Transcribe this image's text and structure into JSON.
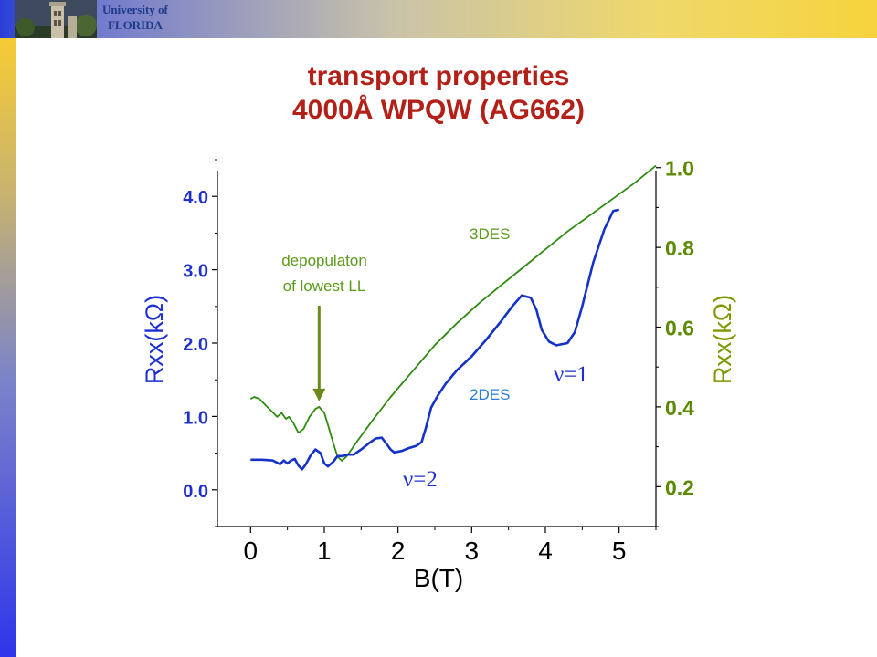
{
  "header": {
    "university_line1": "University of",
    "university_line2": "FLORIDA"
  },
  "slide": {
    "title_line1": "transport properties",
    "title_line2": "4000Å WPQW (AG662)"
  },
  "colors": {
    "title": "#b22018",
    "left_axis": "#1c2fd1",
    "right_axis": "#5c8a00",
    "series_2des": "#1432c8",
    "series_3des": "#2f8a10",
    "label_2des": "#2a7fd0",
    "label_3des": "#5c9a1a"
  },
  "chart_data": {
    "type": "line",
    "xlabel": "B(T)",
    "ylabel_left": "Rxx(kΩ)",
    "ylabel_right": "Rxx(kΩ)",
    "xlim": [
      -0.45,
      5.5
    ],
    "ylim_left": [
      -0.5,
      4.5
    ],
    "ylim_right": [
      0.1,
      1.02
    ],
    "x_ticks": [
      "0",
      "1",
      "2",
      "3",
      "4",
      "5"
    ],
    "y_left_ticks": [
      "0.0",
      "1.0",
      "2.0",
      "3.0",
      "4.0"
    ],
    "y_right_ticks": [
      "0.2",
      "0.4",
      "0.6",
      "0.8",
      "1.0"
    ],
    "series": [
      {
        "name": "2DES",
        "axis": "left",
        "points": [
          [
            0,
            0.41
          ],
          [
            0.15,
            0.41
          ],
          [
            0.3,
            0.4
          ],
          [
            0.4,
            0.35
          ],
          [
            0.45,
            0.4
          ],
          [
            0.5,
            0.36
          ],
          [
            0.55,
            0.4
          ],
          [
            0.6,
            0.42
          ],
          [
            0.65,
            0.33
          ],
          [
            0.7,
            0.28
          ],
          [
            0.75,
            0.35
          ],
          [
            0.82,
            0.48
          ],
          [
            0.88,
            0.55
          ],
          [
            0.95,
            0.5
          ],
          [
            1.0,
            0.36
          ],
          [
            1.05,
            0.32
          ],
          [
            1.12,
            0.38
          ],
          [
            1.18,
            0.46
          ],
          [
            1.25,
            0.46
          ],
          [
            1.32,
            0.48
          ],
          [
            1.4,
            0.48
          ],
          [
            1.5,
            0.55
          ],
          [
            1.6,
            0.63
          ],
          [
            1.7,
            0.7
          ],
          [
            1.78,
            0.71
          ],
          [
            1.85,
            0.62
          ],
          [
            1.9,
            0.55
          ],
          [
            1.95,
            0.51
          ],
          [
            2.05,
            0.53
          ],
          [
            2.15,
            0.57
          ],
          [
            2.25,
            0.6
          ],
          [
            2.32,
            0.65
          ],
          [
            2.38,
            0.85
          ],
          [
            2.45,
            1.12
          ],
          [
            2.55,
            1.3
          ],
          [
            2.65,
            1.45
          ],
          [
            2.8,
            1.63
          ],
          [
            3.0,
            1.82
          ],
          [
            3.2,
            2.05
          ],
          [
            3.4,
            2.3
          ],
          [
            3.55,
            2.5
          ],
          [
            3.68,
            2.65
          ],
          [
            3.8,
            2.62
          ],
          [
            3.88,
            2.45
          ],
          [
            3.95,
            2.18
          ],
          [
            4.05,
            2.02
          ],
          [
            4.15,
            1.97
          ],
          [
            4.3,
            2.0
          ],
          [
            4.4,
            2.15
          ],
          [
            4.5,
            2.5
          ],
          [
            4.65,
            3.1
          ],
          [
            4.8,
            3.55
          ],
          [
            4.92,
            3.8
          ],
          [
            5.0,
            3.82
          ]
        ]
      },
      {
        "name": "3DES",
        "axis": "right",
        "points": [
          [
            0,
            0.42
          ],
          [
            0.05,
            0.425
          ],
          [
            0.12,
            0.42
          ],
          [
            0.2,
            0.405
          ],
          [
            0.28,
            0.39
          ],
          [
            0.36,
            0.375
          ],
          [
            0.42,
            0.385
          ],
          [
            0.48,
            0.37
          ],
          [
            0.52,
            0.375
          ],
          [
            0.58,
            0.36
          ],
          [
            0.65,
            0.335
          ],
          [
            0.72,
            0.345
          ],
          [
            0.8,
            0.375
          ],
          [
            0.88,
            0.395
          ],
          [
            0.93,
            0.4
          ],
          [
            1.0,
            0.385
          ],
          [
            1.05,
            0.355
          ],
          [
            1.12,
            0.31
          ],
          [
            1.18,
            0.275
          ],
          [
            1.24,
            0.265
          ],
          [
            1.3,
            0.275
          ],
          [
            1.45,
            0.315
          ],
          [
            1.65,
            0.365
          ],
          [
            1.9,
            0.425
          ],
          [
            2.2,
            0.49
          ],
          [
            2.5,
            0.555
          ],
          [
            2.8,
            0.61
          ],
          [
            3.1,
            0.66
          ],
          [
            3.4,
            0.705
          ],
          [
            3.7,
            0.75
          ],
          [
            4.0,
            0.795
          ],
          [
            4.3,
            0.84
          ],
          [
            4.6,
            0.88
          ],
          [
            4.9,
            0.92
          ],
          [
            5.2,
            0.96
          ],
          [
            5.5,
            1.005
          ]
        ]
      }
    ],
    "annotations": {
      "label_3des": "3DES",
      "label_2des": "2DES",
      "nu1": "ν=1",
      "nu2": "ν=2",
      "depop_line1": "depopulaton",
      "depop_line2": "of lowest LL",
      "arrow_target": [
        0.93,
        0.4
      ]
    }
  }
}
